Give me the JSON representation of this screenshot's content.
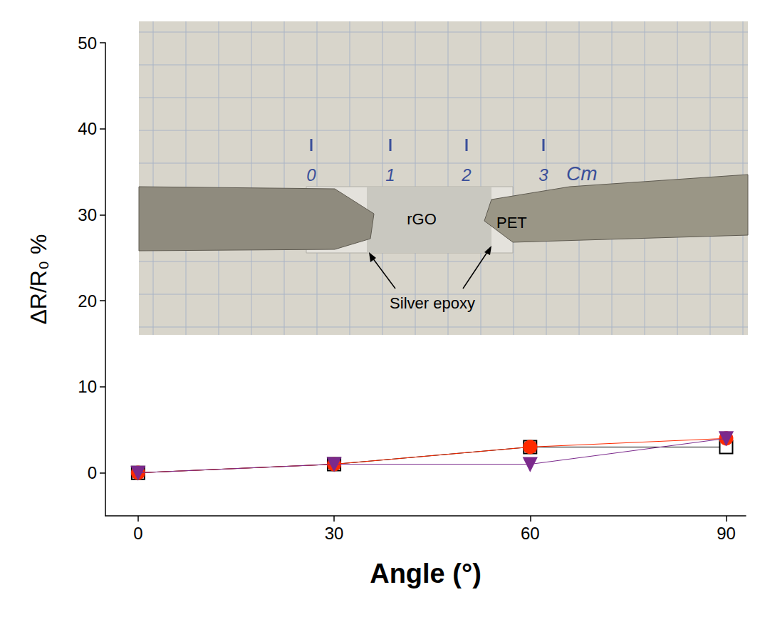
{
  "chart_data": {
    "type": "line",
    "x": [
      0,
      30,
      60,
      90
    ],
    "series": [
      {
        "color": "#000000",
        "marker": "open_square",
        "values": [
          0,
          1,
          3,
          3
        ]
      },
      {
        "color": "#ff2a00",
        "marker": "circle",
        "values": [
          0,
          1,
          3,
          4
        ]
      },
      {
        "color": "#7b2a8c",
        "marker": "triangle_down",
        "values": [
          0,
          1,
          1,
          4
        ]
      }
    ],
    "xlabel": "Angle (°)",
    "ylabel": "ΔR/R₀ %",
    "xlim": [
      -5,
      93
    ],
    "ylim": [
      -5,
      50
    ],
    "xticks": [
      0,
      30,
      60,
      90
    ],
    "yticks": [
      0,
      10,
      20,
      30,
      40,
      50
    ],
    "grid": false,
    "annotations": [
      "0",
      "1",
      "2",
      "3",
      "Cm",
      "rGO",
      "PET",
      "Silver epoxy"
    ]
  }
}
